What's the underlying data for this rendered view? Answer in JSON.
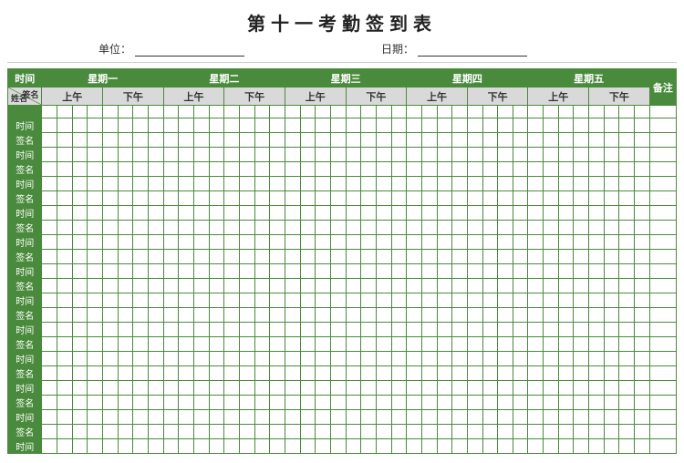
{
  "title": "第十一考勤签到表",
  "info": {
    "unit_label": "单位：",
    "date_label": "日期："
  },
  "header": {
    "time": "时间",
    "days": [
      "星期一",
      "星期二",
      "星期三",
      "星期四",
      "星期五"
    ],
    "diag_top": "签名",
    "diag_bottom": "姓名",
    "halves": [
      "上午",
      "下午"
    ],
    "remark": "备注"
  },
  "row_labels": [
    "",
    "时间",
    "签名",
    "时间",
    "签名",
    "时间",
    "签名",
    "时间",
    "签名",
    "时间",
    "签名",
    "时间",
    "签名",
    "时间",
    "签名",
    "时间",
    "签名",
    "时间",
    "签名",
    "时间",
    "签名",
    "时间",
    "签名",
    "时间"
  ],
  "layout": {
    "cols_per_half": 4,
    "days_count": 5,
    "colors": {
      "green": "#4a8a3c",
      "gray": "#d9d9d9",
      "border": "#4a8a3c",
      "bg": "#ffffff"
    }
  }
}
